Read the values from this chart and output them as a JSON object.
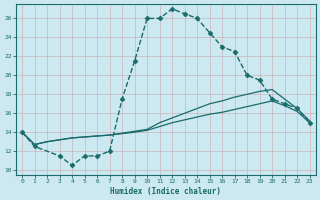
{
  "xlabel": "Humidex (Indice chaleur)",
  "bg_color": "#cce8f0",
  "line_color": "#1a6b6b",
  "grid_color": "#b8d4dc",
  "xlim": [
    -0.5,
    23.5
  ],
  "ylim": [
    9.5,
    27.5
  ],
  "xticks": [
    0,
    1,
    2,
    3,
    4,
    5,
    6,
    7,
    8,
    9,
    10,
    11,
    12,
    13,
    14,
    15,
    16,
    17,
    18,
    19,
    20,
    21,
    22,
    23
  ],
  "yticks": [
    10,
    12,
    14,
    16,
    18,
    20,
    22,
    24,
    26
  ],
  "series": [
    {
      "x": [
        0,
        1,
        3,
        4,
        5,
        6,
        7,
        8,
        9,
        10,
        11,
        12,
        13,
        14,
        15,
        16,
        17,
        18,
        19,
        20,
        21,
        22,
        23
      ],
      "y": [
        14,
        12.5,
        11.5,
        10.5,
        11.5,
        11.5,
        12,
        17.5,
        21.5,
        26,
        26,
        27,
        26.5,
        26,
        24.5,
        23,
        22.5,
        20,
        19.5,
        17.5,
        17,
        16.5,
        15
      ],
      "marker": "D",
      "markersize": 2.5,
      "linewidth": 1.0,
      "linestyle": "--"
    },
    {
      "x": [
        0,
        1,
        2,
        3,
        4,
        5,
        6,
        7,
        8,
        9,
        10,
        11,
        12,
        13,
        14,
        15,
        16,
        17,
        18,
        19,
        20,
        21,
        22,
        23
      ],
      "y": [
        14,
        12.7,
        13.0,
        13.2,
        13.4,
        13.5,
        13.6,
        13.7,
        13.9,
        14.1,
        14.3,
        15.0,
        15.5,
        16.0,
        16.5,
        17.0,
        17.3,
        17.7,
        18.0,
        18.3,
        18.5,
        17.5,
        16.5,
        15.2
      ],
      "marker": null,
      "linewidth": 0.9,
      "linestyle": "-"
    },
    {
      "x": [
        0,
        1,
        2,
        3,
        4,
        5,
        6,
        7,
        8,
        9,
        10,
        11,
        12,
        13,
        14,
        15,
        16,
        17,
        18,
        19,
        20,
        21,
        22,
        23
      ],
      "y": [
        14,
        12.7,
        13.0,
        13.2,
        13.4,
        13.5,
        13.6,
        13.7,
        13.85,
        14.0,
        14.2,
        14.6,
        15.0,
        15.3,
        15.6,
        15.9,
        16.1,
        16.4,
        16.7,
        17.0,
        17.3,
        16.8,
        16.2,
        15.0
      ],
      "marker": null,
      "linewidth": 0.9,
      "linestyle": "-"
    }
  ]
}
